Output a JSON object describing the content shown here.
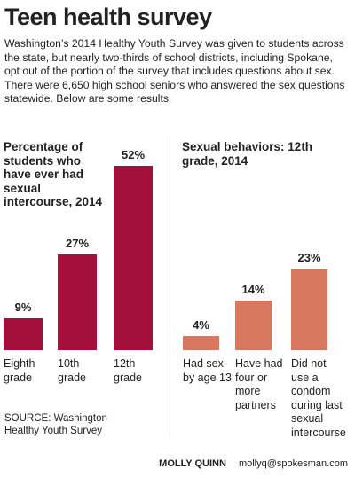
{
  "header": {
    "title": "Teen health survey",
    "intro": "Washington’s 2014 Healthy Youth Survey was given to students across the state, but nearly two-thirds of school districts, including Spokane, opt out of the portion of the survey that includes questions about sex. There were 6,650 high school seniors who answered the sex questions statewide. Below are some results."
  },
  "chart_data": [
    {
      "type": "bar",
      "title": "Percentage of students who have ever had sexual intercourse, 2014",
      "categories": [
        "Eighth grade",
        "10th grade",
        "12th grade"
      ],
      "values": [
        9,
        27,
        52
      ],
      "value_labels": [
        "9%",
        "27%",
        "52%"
      ],
      "color": "#a3103c"
    },
    {
      "type": "bar",
      "title": "Sexual behaviors: 12th grade, 2014",
      "categories": [
        "Had sex by age 13",
        "Have had four or more partners",
        "Did not use a condom during last sexual intercourse"
      ],
      "values": [
        4,
        14,
        23
      ],
      "value_labels": [
        "4%",
        "14%",
        "23%"
      ],
      "color": "#d9775f"
    }
  ],
  "footer": {
    "source": "SOURCE: Washington Healthy Youth Survey",
    "author": "MOLLY QUINN",
    "email": "mollyq@spokesman.com"
  }
}
